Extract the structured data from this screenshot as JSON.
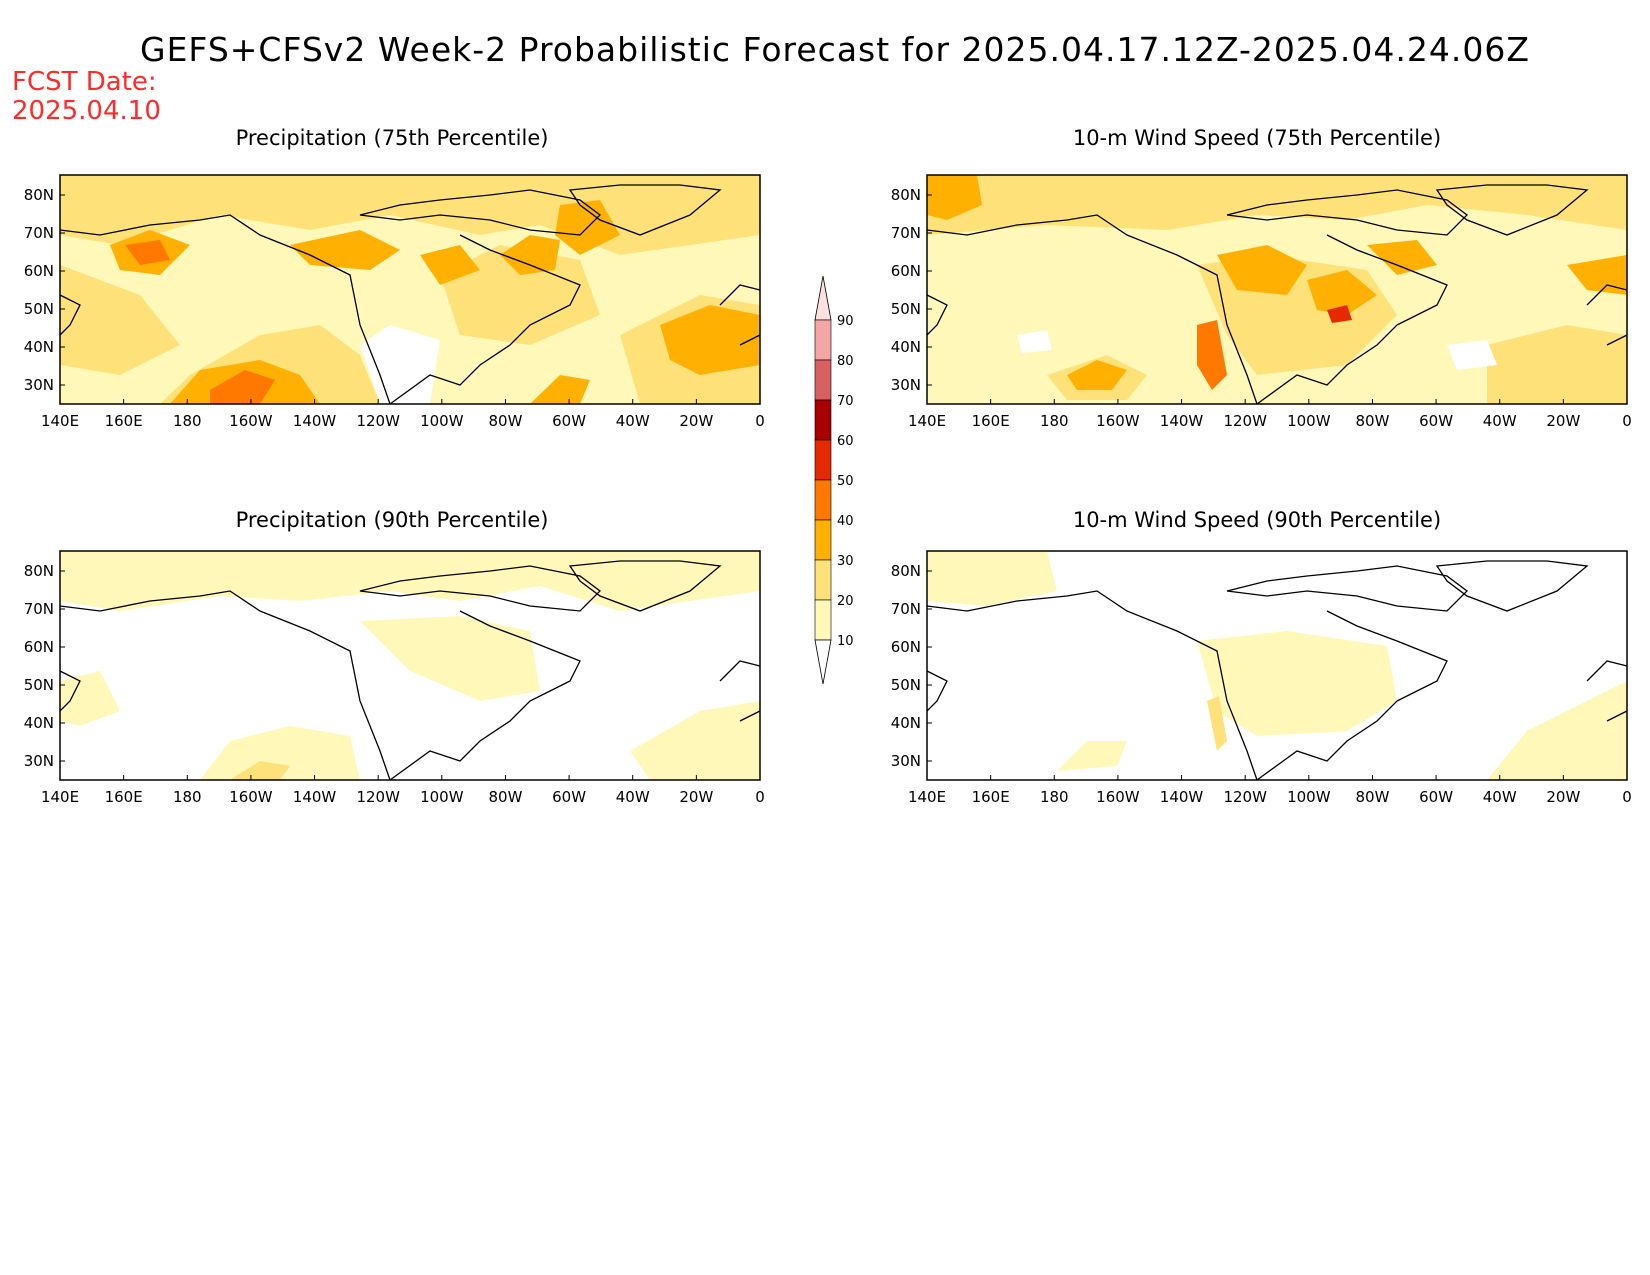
{
  "title": "GEFS+CFSv2 Week-2 Probabilistic Forecast for 2025.04.17.12Z-2025.04.24.06Z",
  "fcst_date_label": "FCST Date:",
  "fcst_date": "2025.04.10",
  "panels": [
    {
      "title": "Precipitation (75th Percentile)"
    },
    {
      "title": "10-m Wind Speed (75th Percentile)"
    },
    {
      "title": "Precipitation (90th Percentile)"
    },
    {
      "title": "10-m Wind Speed (90th Percentile)"
    }
  ],
  "lon_ticks": [
    "140E",
    "160E",
    "180",
    "160W",
    "140W",
    "120W",
    "100W",
    "80W",
    "60W",
    "40W",
    "20W",
    "0"
  ],
  "lat_ticks": [
    "80N",
    "70N",
    "60N",
    "50N",
    "40N",
    "30N"
  ],
  "colorbar": {
    "levels": [
      "10",
      "20",
      "30",
      "40",
      "50",
      "60",
      "70",
      "80",
      "90"
    ],
    "colors": [
      "#fff8b8",
      "#ffe17a",
      "#ffb000",
      "#ff7800",
      "#e62a00",
      "#a80000",
      "#d96060",
      "#f4a6a6",
      "#fde0e0"
    ]
  }
}
